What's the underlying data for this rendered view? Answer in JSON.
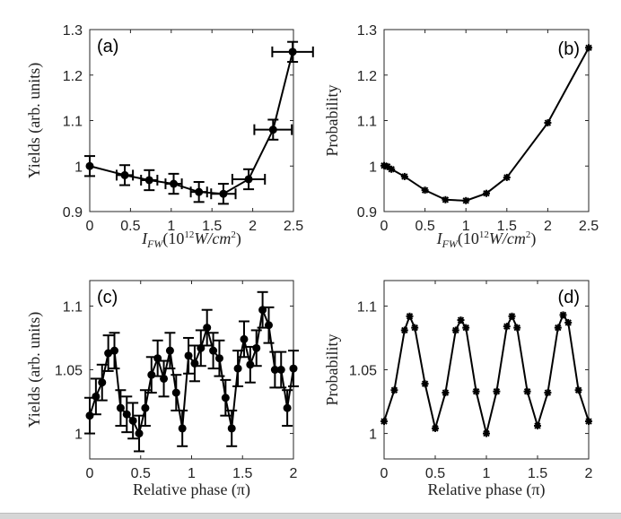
{
  "chart_data": [
    {
      "panel_label": "(a)",
      "type": "line",
      "marker": "circle",
      "xlabel": "I_FW (10^12 W/cm^2)",
      "xlabel_parts": {
        "I": "I",
        "sub": "FW",
        "pre": "(10",
        "sup1": "12",
        "mid": "W/cm",
        "sup2": "2",
        "post": ")"
      },
      "ylabel": "Yields (arb. units)",
      "xlim": [
        0,
        2.5
      ],
      "ylim": [
        0.9,
        1.3
      ],
      "xticks": [
        0,
        0.5,
        1,
        1.5,
        2,
        2.5
      ],
      "xticklabels": [
        "0",
        "0.5",
        "1",
        "1.5",
        "2",
        "2.5"
      ],
      "yticks": [
        0.9,
        1.0,
        1.1,
        1.2,
        1.3
      ],
      "yticklabels": [
        "0.9",
        "1",
        "1.1",
        "1.2",
        "1.3"
      ],
      "x": [
        0,
        0.43,
        0.73,
        1.03,
        1.34,
        1.64,
        1.95,
        2.25,
        2.49
      ],
      "y": [
        1.0,
        0.98,
        0.969,
        0.961,
        0.943,
        0.939,
        0.971,
        1.08,
        1.251
      ],
      "yerr": [
        0.022,
        0.022,
        0.022,
        0.022,
        0.022,
        0.022,
        0.022,
        0.022,
        0.022
      ],
      "xerr": [
        0,
        0.1,
        0.1,
        0.1,
        0.1,
        0.15,
        0.2,
        0.23,
        0.25
      ]
    },
    {
      "panel_label": "(b)",
      "type": "line",
      "marker": "asterisk",
      "xlabel": "I_FW (10^12 W/cm^2)",
      "xlabel_parts": {
        "I": "I",
        "sub": "FW",
        "pre": "(10",
        "sup1": "12",
        "mid": "W/cm",
        "sup2": "2",
        "post": ")"
      },
      "ylabel": "Probability",
      "xlim": [
        0,
        2.5
      ],
      "ylim": [
        0.9,
        1.3
      ],
      "xticks": [
        0,
        0.5,
        1,
        1.5,
        2,
        2.5
      ],
      "xticklabels": [
        "0",
        "0.5",
        "1",
        "1.5",
        "2",
        "2.5"
      ],
      "yticks": [
        0.9,
        1.0,
        1.1,
        1.2,
        1.3
      ],
      "yticklabels": [
        "0.9",
        "1",
        "1.1",
        "1.2",
        "1.3"
      ],
      "x": [
        0,
        0.04,
        0.09,
        0.25,
        0.5,
        0.75,
        1.0,
        1.25,
        1.5,
        2.0,
        2.5
      ],
      "y": [
        1.001,
        0.999,
        0.993,
        0.977,
        0.947,
        0.926,
        0.924,
        0.94,
        0.975,
        1.095,
        1.26
      ]
    },
    {
      "panel_label": "(c)",
      "type": "line",
      "marker": "circle",
      "xlabel": "Relative phase (π)",
      "ylabel": "Yields (arb. units)",
      "xlim": [
        0,
        2
      ],
      "ylim": [
        0.98,
        1.12
      ],
      "xticks": [
        0,
        0.5,
        1,
        1.5,
        2
      ],
      "xticklabels": [
        "0",
        "0.5",
        "1",
        "1.5",
        "2"
      ],
      "yticks": [
        1.0,
        1.05,
        1.1
      ],
      "yticklabels": [
        "1",
        "1.05",
        "1.1"
      ],
      "x_start": 0,
      "x_end": 2,
      "y": [
        1.014,
        1.029,
        1.04,
        1.063,
        1.065,
        1.02,
        1.015,
        1.01,
        1.0,
        1.02,
        1.046,
        1.059,
        1.043,
        1.065,
        1.032,
        1.004,
        1.061,
        1.055,
        1.067,
        1.083,
        1.065,
        1.059,
        1.028,
        1.004,
        1.051,
        1.074,
        1.054,
        1.067,
        1.097,
        1.085,
        1.05,
        1.05,
        1.02,
        1.051
      ],
      "yerr": 0.014
    },
    {
      "panel_label": "(d)",
      "type": "line",
      "marker": "asterisk",
      "xlabel": "Relative phase (π)",
      "ylabel": "Probability",
      "xlim": [
        0,
        2
      ],
      "ylim": [
        0.98,
        1.12
      ],
      "xticks": [
        0,
        0.5,
        1,
        1.5,
        2
      ],
      "xticklabels": [
        "0",
        "0.5",
        "1",
        "1.5",
        "2"
      ],
      "yticks": [
        1.0,
        1.05,
        1.1
      ],
      "yticklabels": [
        "1",
        "1.05",
        "1.1"
      ],
      "x": [
        0,
        0.1,
        0.2,
        0.25,
        0.3,
        0.4,
        0.5,
        0.6,
        0.7,
        0.75,
        0.8,
        0.9,
        1.0,
        1.1,
        1.2,
        1.25,
        1.3,
        1.4,
        1.5,
        1.6,
        1.7,
        1.75,
        1.8,
        1.9,
        2.0
      ],
      "y": [
        1.0095,
        1.034,
        1.081,
        1.092,
        1.083,
        1.039,
        1.004,
        1.032,
        1.081,
        1.089,
        1.083,
        1.033,
        1.0,
        1.033,
        1.084,
        1.092,
        1.083,
        1.033,
        1.006,
        1.032,
        1.083,
        1.093,
        1.087,
        1.034,
        1.0095
      ]
    }
  ]
}
